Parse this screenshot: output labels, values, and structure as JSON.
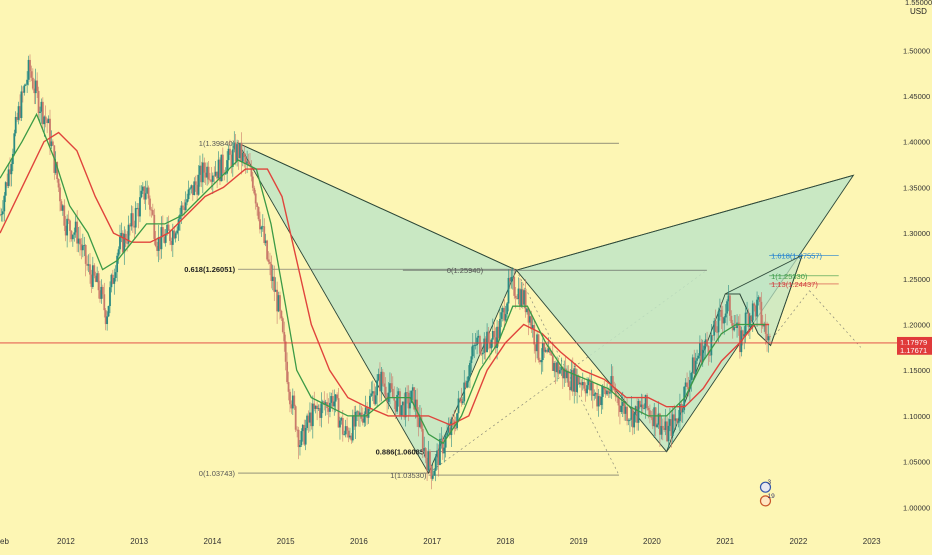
{
  "currency_label": "USD",
  "colors": {
    "background": "#fdf6b4",
    "pattern_fill": "#bfe5c6",
    "pattern_stroke": "#2f4a3a",
    "ma_fast": "#3c9a46",
    "ma_slow": "#e0443c",
    "price_line": "#e03a3a",
    "candle_up": "#2a8a82",
    "candle_down": "#c97a6a",
    "fib_blue": "#1e7fd0",
    "fib_green": "#3d9b4a",
    "fib_red": "#d04040"
  },
  "chart_data": {
    "type": "candlestick",
    "x_axis": {
      "ticks": [
        "2012",
        "2013",
        "2014",
        "2015",
        "2016",
        "2017",
        "2018",
        "2019",
        "2020",
        "2021",
        "2022",
        "2023"
      ],
      "partial_left_label": "eb",
      "range": [
        2011.1,
        2023.25
      ]
    },
    "y_axis": {
      "ticks": [
        "1.00000",
        "1.05000",
        "1.10000",
        "1.15000",
        "1.20000",
        "1.25000",
        "1.30000",
        "1.35000",
        "1.40000",
        "1.45000",
        "1.50000",
        "1.55000"
      ],
      "tick_values": [
        1.0,
        1.05,
        1.1,
        1.15,
        1.2,
        1.25,
        1.3,
        1.35,
        1.4,
        1.45,
        1.5,
        1.55
      ],
      "range": [
        0.985,
        1.555
      ],
      "position": "right"
    },
    "price_path": [
      [
        2011.1,
        1.32
      ],
      [
        2011.2,
        1.36
      ],
      [
        2011.35,
        1.43
      ],
      [
        2011.5,
        1.48
      ],
      [
        2011.6,
        1.45
      ],
      [
        2011.75,
        1.42
      ],
      [
        2011.9,
        1.35
      ],
      [
        2012.0,
        1.31
      ],
      [
        2012.15,
        1.3
      ],
      [
        2012.3,
        1.26
      ],
      [
        2012.45,
        1.24
      ],
      [
        2012.55,
        1.21
      ],
      [
        2012.7,
        1.28
      ],
      [
        2012.85,
        1.3
      ],
      [
        2013.0,
        1.33
      ],
      [
        2013.1,
        1.35
      ],
      [
        2013.25,
        1.29
      ],
      [
        2013.45,
        1.3
      ],
      [
        2013.6,
        1.33
      ],
      [
        2013.75,
        1.35
      ],
      [
        2013.9,
        1.37
      ],
      [
        2014.1,
        1.37
      ],
      [
        2014.35,
        1.39
      ],
      [
        2014.55,
        1.36
      ],
      [
        2014.75,
        1.27
      ],
      [
        2014.9,
        1.22
      ],
      [
        2015.05,
        1.13
      ],
      [
        2015.2,
        1.07
      ],
      [
        2015.35,
        1.1
      ],
      [
        2015.5,
        1.11
      ],
      [
        2015.65,
        1.12
      ],
      [
        2015.8,
        1.08
      ],
      [
        2015.95,
        1.09
      ],
      [
        2016.1,
        1.11
      ],
      [
        2016.3,
        1.14
      ],
      [
        2016.45,
        1.12
      ],
      [
        2016.6,
        1.11
      ],
      [
        2016.75,
        1.12
      ],
      [
        2016.9,
        1.06
      ],
      [
        2017.0,
        1.04
      ],
      [
        2017.15,
        1.07
      ],
      [
        2017.3,
        1.09
      ],
      [
        2017.45,
        1.14
      ],
      [
        2017.6,
        1.18
      ],
      [
        2017.75,
        1.18
      ],
      [
        2017.9,
        1.19
      ],
      [
        2018.05,
        1.24
      ],
      [
        2018.15,
        1.24
      ],
      [
        2018.3,
        1.22
      ],
      [
        2018.45,
        1.17
      ],
      [
        2018.6,
        1.16
      ],
      [
        2018.75,
        1.15
      ],
      [
        2018.9,
        1.14
      ],
      [
        2019.05,
        1.14
      ],
      [
        2019.25,
        1.12
      ],
      [
        2019.45,
        1.13
      ],
      [
        2019.6,
        1.11
      ],
      [
        2019.75,
        1.1
      ],
      [
        2019.9,
        1.11
      ],
      [
        2020.05,
        1.1
      ],
      [
        2020.2,
        1.08
      ],
      [
        2020.35,
        1.1
      ],
      [
        2020.5,
        1.14
      ],
      [
        2020.65,
        1.17
      ],
      [
        2020.8,
        1.18
      ],
      [
        2020.95,
        1.21
      ],
      [
        2021.05,
        1.22
      ],
      [
        2021.2,
        1.18
      ],
      [
        2021.3,
        1.21
      ],
      [
        2021.45,
        1.22
      ],
      [
        2021.55,
        1.19
      ],
      [
        2021.62,
        1.18
      ]
    ],
    "ma_fast": [
      [
        2011.1,
        1.36
      ],
      [
        2011.4,
        1.4
      ],
      [
        2011.6,
        1.43
      ],
      [
        2011.85,
        1.38
      ],
      [
        2012.05,
        1.33
      ],
      [
        2012.3,
        1.3
      ],
      [
        2012.5,
        1.26
      ],
      [
        2012.7,
        1.27
      ],
      [
        2012.9,
        1.29
      ],
      [
        2013.1,
        1.31
      ],
      [
        2013.35,
        1.31
      ],
      [
        2013.6,
        1.32
      ],
      [
        2013.85,
        1.34
      ],
      [
        2014.1,
        1.36
      ],
      [
        2014.35,
        1.38
      ],
      [
        2014.6,
        1.37
      ],
      [
        2014.8,
        1.31
      ],
      [
        2015.0,
        1.22
      ],
      [
        2015.15,
        1.15
      ],
      [
        2015.35,
        1.12
      ],
      [
        2015.6,
        1.11
      ],
      [
        2015.85,
        1.1
      ],
      [
        2016.1,
        1.1
      ],
      [
        2016.4,
        1.12
      ],
      [
        2016.7,
        1.12
      ],
      [
        2016.95,
        1.08
      ],
      [
        2017.15,
        1.07
      ],
      [
        2017.4,
        1.1
      ],
      [
        2017.65,
        1.15
      ],
      [
        2017.9,
        1.18
      ],
      [
        2018.1,
        1.22
      ],
      [
        2018.3,
        1.22
      ],
      [
        2018.55,
        1.18
      ],
      [
        2018.8,
        1.15
      ],
      [
        2019.1,
        1.14
      ],
      [
        2019.4,
        1.13
      ],
      [
        2019.7,
        1.11
      ],
      [
        2019.95,
        1.1
      ],
      [
        2020.2,
        1.1
      ],
      [
        2020.45,
        1.12
      ],
      [
        2020.7,
        1.16
      ],
      [
        2020.95,
        1.19
      ],
      [
        2021.15,
        1.2
      ],
      [
        2021.35,
        1.2
      ],
      [
        2021.55,
        1.2
      ]
    ],
    "ma_slow": [
      [
        2011.1,
        1.3
      ],
      [
        2011.4,
        1.35
      ],
      [
        2011.7,
        1.4
      ],
      [
        2011.9,
        1.41
      ],
      [
        2012.15,
        1.39
      ],
      [
        2012.4,
        1.34
      ],
      [
        2012.65,
        1.3
      ],
      [
        2012.9,
        1.29
      ],
      [
        2013.15,
        1.29
      ],
      [
        2013.4,
        1.3
      ],
      [
        2013.65,
        1.32
      ],
      [
        2013.9,
        1.34
      ],
      [
        2014.15,
        1.35
      ],
      [
        2014.45,
        1.37
      ],
      [
        2014.75,
        1.37
      ],
      [
        2014.95,
        1.34
      ],
      [
        2015.15,
        1.27
      ],
      [
        2015.35,
        1.2
      ],
      [
        2015.6,
        1.15
      ],
      [
        2015.85,
        1.12
      ],
      [
        2016.1,
        1.11
      ],
      [
        2016.4,
        1.1
      ],
      [
        2016.7,
        1.1
      ],
      [
        2016.95,
        1.1
      ],
      [
        2017.25,
        1.09
      ],
      [
        2017.5,
        1.1
      ],
      [
        2017.75,
        1.15
      ],
      [
        2018.0,
        1.18
      ],
      [
        2018.25,
        1.2
      ],
      [
        2018.5,
        1.19
      ],
      [
        2018.75,
        1.17
      ],
      [
        2019.05,
        1.15
      ],
      [
        2019.35,
        1.14
      ],
      [
        2019.65,
        1.12
      ],
      [
        2019.95,
        1.12
      ],
      [
        2020.2,
        1.11
      ],
      [
        2020.45,
        1.11
      ],
      [
        2020.7,
        1.13
      ],
      [
        2020.95,
        1.16
      ],
      [
        2021.2,
        1.18
      ],
      [
        2021.4,
        1.2
      ],
      [
        2021.6,
        1.2
      ]
    ],
    "current_price": 1.17979,
    "price_line_level": 1.17979,
    "price_tags": [
      {
        "label": "1.17979",
        "value": 1.17979
      },
      {
        "label": "1.17671",
        "value": 1.17671
      }
    ],
    "harmonic_pattern": {
      "X": [
        2014.35,
        1.3984
      ],
      "A": [
        2016.95,
        1.0374
      ],
      "B": [
        2018.15,
        1.2594
      ],
      "C": [
        2020.2,
        1.0608
      ],
      "D": [
        2022.75,
        1.3632
      ],
      "second_pattern": [
        [
          2020.2,
          1.0608
        ],
        [
          2021.0,
          1.2335
        ],
        [
          2021.2,
          1.2335
        ],
        [
          2021.45,
          1.19
        ],
        [
          2021.62,
          1.177
        ],
        [
          2022.05,
          1.2756
        ]
      ]
    },
    "fib_levels": [
      {
        "label": "1(1.39840)",
        "value": 1.3984,
        "x_from": 2014.35,
        "x_to": 2019.55,
        "color": "#555555",
        "bold": false
      },
      {
        "label": "0.618(1.26051)",
        "value": 1.26051,
        "x_from": 2014.35,
        "x_to": 2018.15,
        "color": "#222222",
        "bold": true
      },
      {
        "label": "0(1.25940)",
        "value": 1.2594,
        "x_from": 2016.6,
        "x_to": 2020.75,
        "color": "#555555",
        "bold": false
      },
      {
        "label": "0.886(1.06085)",
        "value": 1.06085,
        "x_from": 2016.95,
        "x_to": 2020.2,
        "color": "#222222",
        "bold": true
      },
      {
        "label": "0(1.03743)",
        "value": 1.03743,
        "x_from": 2014.35,
        "x_to": 2016.95,
        "color": "#555555",
        "bold": false
      },
      {
        "label": "1(1.03530)",
        "value": 1.0353,
        "x_from": 2016.95,
        "x_to": 2019.55,
        "color": "#555555",
        "bold": false
      },
      {
        "label": "1.618(1.27557)",
        "value": 1.27557,
        "x_from": 2021.6,
        "x_to": 2022.55,
        "color": "#1e7fd0",
        "bold": false
      },
      {
        "label": "1(1.25330)",
        "value": 1.2533,
        "x_from": 2021.6,
        "x_to": 2022.55,
        "color": "#3d9b4a",
        "bold": false
      },
      {
        "label": "1.13(1.24437)",
        "value": 1.24437,
        "x_from": 2021.6,
        "x_to": 2022.55,
        "color": "#d04040",
        "bold": false
      }
    ],
    "event_badges": [
      {
        "label": "3",
        "x": 2021.55,
        "value": 1.022
      },
      {
        "label": "19",
        "x": 2021.55,
        "value": 1.007
      }
    ],
    "grid": false,
    "legend": "none"
  }
}
